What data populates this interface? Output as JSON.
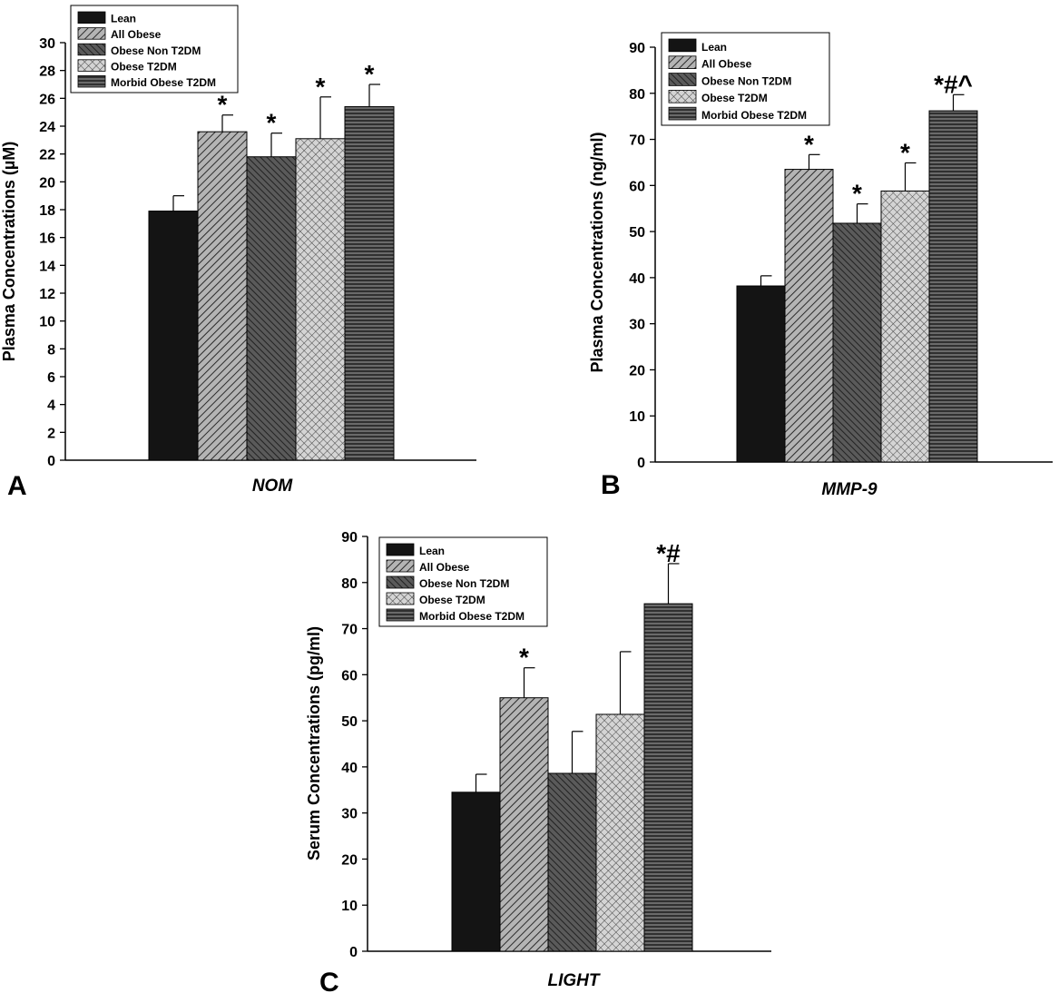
{
  "legend_entries": [
    "Lean",
    "All Obese",
    "Obese Non T2DM",
    "Obese T2DM",
    "Morbid Obese T2DM"
  ],
  "chart_data": [
    {
      "type": "bar",
      "panel": "A",
      "categories": [
        "NOM"
      ],
      "xlabel": "NOM",
      "ylabel": "Plasma Concentrations (µM)",
      "ylim": [
        0,
        30
      ],
      "yticks": [
        0,
        2,
        4,
        6,
        8,
        10,
        12,
        14,
        16,
        18,
        20,
        22,
        24,
        26,
        28,
        30
      ],
      "legend_position": "top-left",
      "grid": false,
      "series": [
        {
          "name": "Lean",
          "values": [
            17.9
          ],
          "error": [
            1.1
          ],
          "annotation": ""
        },
        {
          "name": "All Obese",
          "values": [
            23.6
          ],
          "error": [
            1.2
          ],
          "annotation": "*"
        },
        {
          "name": "Obese Non T2DM",
          "values": [
            21.8
          ],
          "error": [
            1.7
          ],
          "annotation": "*"
        },
        {
          "name": "Obese T2DM",
          "values": [
            23.1
          ],
          "error": [
            3.0
          ],
          "annotation": "*"
        },
        {
          "name": "Morbid Obese T2DM",
          "values": [
            25.4
          ],
          "error": [
            1.6
          ],
          "annotation": "*"
        }
      ]
    },
    {
      "type": "bar",
      "panel": "B",
      "categories": [
        "MMP-9"
      ],
      "xlabel": "MMP-9",
      "ylabel": "Plasma Concentrations (ng/ml)",
      "ylim": [
        0,
        90
      ],
      "yticks": [
        0,
        10,
        20,
        30,
        40,
        50,
        60,
        70,
        80,
        90
      ],
      "legend_position": "top-left",
      "grid": false,
      "series": [
        {
          "name": "Lean",
          "values": [
            38.2
          ],
          "error": [
            2.2
          ],
          "annotation": ""
        },
        {
          "name": "All Obese",
          "values": [
            63.5
          ],
          "error": [
            3.2
          ],
          "annotation": "*"
        },
        {
          "name": "Obese Non T2DM",
          "values": [
            51.8
          ],
          "error": [
            4.2
          ],
          "annotation": "*"
        },
        {
          "name": "Obese T2DM",
          "values": [
            58.8
          ],
          "error": [
            6.1
          ],
          "annotation": "*"
        },
        {
          "name": "Morbid Obese T2DM",
          "values": [
            76.2
          ],
          "error": [
            3.5
          ],
          "annotation": "*#^"
        }
      ]
    },
    {
      "type": "bar",
      "panel": "C",
      "categories": [
        "LIGHT"
      ],
      "xlabel": "LIGHT",
      "ylabel": "Serum Concentrations (pg/ml)",
      "ylim": [
        0,
        90
      ],
      "yticks": [
        0,
        10,
        20,
        30,
        40,
        50,
        60,
        70,
        80,
        90
      ],
      "legend_position": "top-left",
      "grid": false,
      "series": [
        {
          "name": "Lean",
          "values": [
            34.5
          ],
          "error": [
            3.9
          ],
          "annotation": ""
        },
        {
          "name": "All Obese",
          "values": [
            55.0
          ],
          "error": [
            6.5
          ],
          "annotation": "*"
        },
        {
          "name": "Obese Non T2DM",
          "values": [
            38.6
          ],
          "error": [
            9.1
          ],
          "annotation": ""
        },
        {
          "name": "Obese T2DM",
          "values": [
            51.4
          ],
          "error": [
            13.6
          ],
          "annotation": ""
        },
        {
          "name": "Morbid Obese T2DM",
          "values": [
            75.4
          ],
          "error": [
            8.7
          ],
          "annotation": "*#"
        }
      ]
    }
  ],
  "colors": {
    "lean": "#141414",
    "pattern_background": "#a8a8a8",
    "pattern_line": "#2a2a2a",
    "dark_background": "#4a4a4a",
    "axis": "#000000"
  },
  "fill_patterns": [
    "solid",
    "diag-right",
    "diag-left",
    "crosshatch",
    "horizontal"
  ]
}
